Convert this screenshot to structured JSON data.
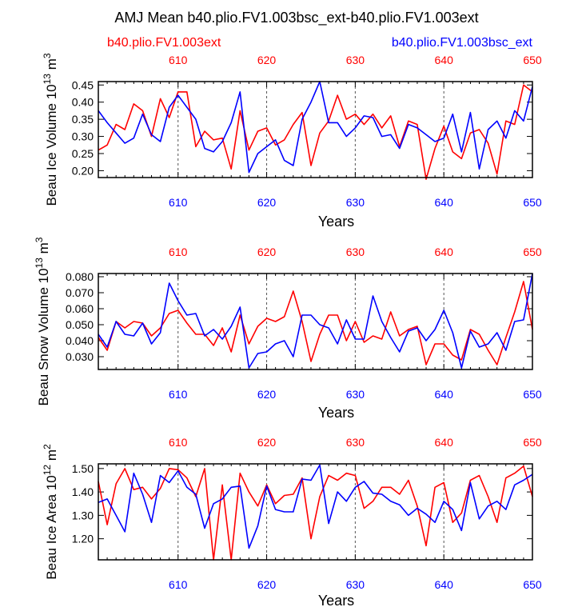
{
  "title": "AMJ Mean b40.plio.FV1.003bsc_ext-b40.plio.FV1.003ext",
  "legend": {
    "left": {
      "label": "b40.plio.FV1.003ext",
      "color": "#ff0000"
    },
    "right": {
      "label": "b40.plio.FV1.003bsc_ext",
      "color": "#0000ff"
    }
  },
  "colors": {
    "series_a": "#ff0000",
    "series_b": "#0000ff",
    "axis": "#000000",
    "grid": "#555555"
  },
  "chart_data": [
    {
      "type": "line",
      "ylabel_parts": [
        "Beau Ice Volume 10",
        "13",
        " m",
        "3"
      ],
      "xlabel": "Years",
      "xlim": [
        601,
        650
      ],
      "ylim": [
        0.18,
        0.46
      ],
      "xticks": [
        610,
        620,
        630,
        640,
        650
      ],
      "yticks": [
        "0.20",
        "0.25",
        "0.30",
        "0.35",
        "0.40",
        "0.45"
      ],
      "vgrid": [
        610,
        620,
        630,
        640
      ],
      "x": [
        601,
        602,
        603,
        604,
        605,
        606,
        607,
        608,
        609,
        610,
        611,
        612,
        613,
        614,
        615,
        616,
        617,
        618,
        619,
        620,
        621,
        622,
        623,
        624,
        625,
        626,
        627,
        628,
        629,
        630,
        631,
        632,
        633,
        634,
        635,
        636,
        637,
        638,
        639,
        640,
        641,
        642,
        643,
        644,
        645,
        646,
        647,
        648,
        649,
        650
      ],
      "series": [
        {
          "name": "b40.plio.FV1.003ext",
          "color": "#ff0000",
          "values": [
            0.26,
            0.275,
            0.335,
            0.32,
            0.395,
            0.375,
            0.3,
            0.41,
            0.355,
            0.43,
            0.43,
            0.27,
            0.315,
            0.29,
            0.295,
            0.205,
            0.375,
            0.26,
            0.315,
            0.325,
            0.275,
            0.29,
            0.335,
            0.37,
            0.215,
            0.31,
            0.345,
            0.42,
            0.35,
            0.365,
            0.335,
            0.365,
            0.325,
            0.36,
            0.27,
            0.345,
            0.335,
            0.175,
            0.265,
            0.33,
            0.255,
            0.235,
            0.31,
            0.32,
            0.28,
            0.19,
            0.345,
            0.335,
            0.45,
            0.43
          ]
        },
        {
          "name": "b40.plio.FV1.003bsc_ext",
          "color": "#0000ff",
          "values": [
            0.375,
            0.34,
            0.31,
            0.28,
            0.295,
            0.365,
            0.305,
            0.285,
            0.385,
            0.42,
            0.385,
            0.35,
            0.265,
            0.255,
            0.285,
            0.34,
            0.43,
            0.195,
            0.25,
            0.27,
            0.29,
            0.23,
            0.215,
            0.35,
            0.4,
            0.46,
            0.34,
            0.34,
            0.3,
            0.325,
            0.36,
            0.355,
            0.3,
            0.305,
            0.265,
            0.335,
            0.325,
            0.305,
            0.285,
            0.295,
            0.365,
            0.255,
            0.37,
            0.205,
            0.32,
            0.345,
            0.295,
            0.375,
            0.345,
            0.445
          ]
        }
      ]
    },
    {
      "type": "line",
      "ylabel_parts": [
        "Beau Snow Volume 10",
        "13",
        " m",
        "3"
      ],
      "xlabel": "Years",
      "xlim": [
        601,
        650
      ],
      "ylim": [
        0.022,
        0.082
      ],
      "xticks": [
        610,
        620,
        630,
        640,
        650
      ],
      "yticks": [
        "0.030",
        "0.040",
        "0.050",
        "0.060",
        "0.070",
        "0.080"
      ],
      "vgrid": [
        610,
        620,
        630,
        640
      ],
      "x": [
        601,
        602,
        603,
        604,
        605,
        606,
        607,
        608,
        609,
        610,
        611,
        612,
        613,
        614,
        615,
        616,
        617,
        618,
        619,
        620,
        621,
        622,
        623,
        624,
        625,
        626,
        627,
        628,
        629,
        630,
        631,
        632,
        633,
        634,
        635,
        636,
        637,
        638,
        639,
        640,
        641,
        642,
        643,
        644,
        645,
        646,
        647,
        648,
        649,
        650
      ],
      "series": [
        {
          "name": "b40.plio.FV1.003ext",
          "color": "#ff0000",
          "values": [
            0.042,
            0.034,
            0.052,
            0.048,
            0.052,
            0.051,
            0.043,
            0.048,
            0.057,
            0.059,
            0.051,
            0.044,
            0.044,
            0.037,
            0.048,
            0.033,
            0.056,
            0.038,
            0.049,
            0.054,
            0.052,
            0.055,
            0.071,
            0.052,
            0.027,
            0.044,
            0.056,
            0.056,
            0.04,
            0.052,
            0.039,
            0.043,
            0.041,
            0.058,
            0.043,
            0.047,
            0.049,
            0.025,
            0.038,
            0.038,
            0.031,
            0.028,
            0.047,
            0.044,
            0.034,
            0.025,
            0.042,
            0.058,
            0.077,
            0.047
          ]
        },
        {
          "name": "b40.plio.FV1.003bsc_ext",
          "color": "#0000ff",
          "values": [
            0.044,
            0.036,
            0.052,
            0.044,
            0.043,
            0.051,
            0.038,
            0.045,
            0.076,
            0.065,
            0.056,
            0.057,
            0.043,
            0.047,
            0.041,
            0.049,
            0.061,
            0.023,
            0.032,
            0.033,
            0.038,
            0.04,
            0.03,
            0.056,
            0.056,
            0.05,
            0.048,
            0.038,
            0.053,
            0.041,
            0.041,
            0.068,
            0.052,
            0.042,
            0.033,
            0.046,
            0.048,
            0.04,
            0.047,
            0.059,
            0.045,
            0.023,
            0.046,
            0.036,
            0.038,
            0.045,
            0.034,
            0.052,
            0.053,
            0.082
          ]
        }
      ]
    },
    {
      "type": "line",
      "ylabel_parts": [
        "Beau Ice Area 10",
        "12",
        " m",
        "2"
      ],
      "xlabel": "Years",
      "xlim": [
        601,
        650
      ],
      "ylim": [
        1.11,
        1.52
      ],
      "xticks": [
        610,
        620,
        630,
        640,
        650
      ],
      "yticks": [
        "1.20",
        "1.30",
        "1.40",
        "1.50"
      ],
      "vgrid": [
        610,
        620,
        630,
        640
      ],
      "x": [
        601,
        602,
        603,
        604,
        605,
        606,
        607,
        608,
        609,
        610,
        611,
        612,
        613,
        614,
        615,
        616,
        617,
        618,
        619,
        620,
        621,
        622,
        623,
        624,
        625,
        626,
        627,
        628,
        629,
        630,
        631,
        632,
        633,
        634,
        635,
        636,
        637,
        638,
        639,
        640,
        641,
        642,
        643,
        644,
        645,
        646,
        647,
        648,
        649,
        650
      ],
      "series": [
        {
          "name": "b40.plio.FV1.003ext",
          "color": "#ff0000",
          "values": [
            1.445,
            1.26,
            1.435,
            1.5,
            1.41,
            1.42,
            1.37,
            1.415,
            1.5,
            1.495,
            1.46,
            1.38,
            1.5,
            1.11,
            1.43,
            1.11,
            1.48,
            1.4,
            1.34,
            1.43,
            1.35,
            1.385,
            1.39,
            1.46,
            1.2,
            1.38,
            1.47,
            1.45,
            1.48,
            1.47,
            1.33,
            1.36,
            1.42,
            1.42,
            1.39,
            1.45,
            1.34,
            1.17,
            1.42,
            1.44,
            1.27,
            1.31,
            1.45,
            1.47,
            1.38,
            1.27,
            1.46,
            1.48,
            1.51,
            1.38
          ]
        },
        {
          "name": "b40.plio.FV1.003bsc_ext",
          "color": "#0000ff",
          "values": [
            1.355,
            1.37,
            1.3,
            1.23,
            1.48,
            1.39,
            1.27,
            1.47,
            1.44,
            1.49,
            1.42,
            1.39,
            1.245,
            1.35,
            1.37,
            1.42,
            1.425,
            1.16,
            1.255,
            1.425,
            1.325,
            1.315,
            1.315,
            1.455,
            1.45,
            1.515,
            1.265,
            1.4,
            1.36,
            1.42,
            1.445,
            1.395,
            1.39,
            1.36,
            1.345,
            1.3,
            1.33,
            1.305,
            1.27,
            1.36,
            1.325,
            1.235,
            1.44,
            1.285,
            1.34,
            1.36,
            1.325,
            1.43,
            1.45,
            1.475
          ]
        }
      ]
    }
  ]
}
